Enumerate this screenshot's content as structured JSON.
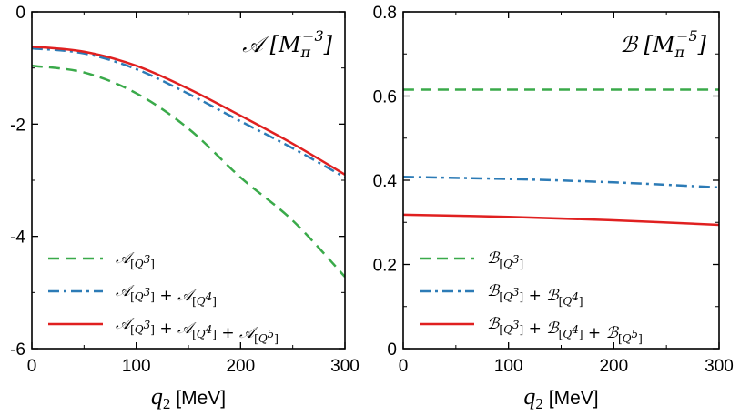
{
  "chart_data": [
    {
      "type": "line",
      "title": "𝒜 [Mπ⁻³]",
      "title_parts": {
        "symbol": "𝒜",
        "unit_base": "M",
        "unit_sub": "π",
        "unit_sup": "−3"
      },
      "xlabel": "q₂ [MeV]",
      "xlabel_parts": {
        "var": "q",
        "sub": "2",
        "unit": "[MeV]"
      },
      "ylabel": "",
      "xlim": [
        0,
        300
      ],
      "ylim": [
        -6,
        0
      ],
      "xticks": [
        0,
        100,
        200,
        300
      ],
      "yticks": [
        0,
        -2,
        -4,
        -6
      ],
      "ytick_labels": [
        "0",
        "-2",
        "-4",
        "-6"
      ],
      "legend_position": "bottom-left",
      "series": [
        {
          "name": "𝒜[Q³]",
          "legend_parts": [
            [
              "𝒜",
              "[Q3]"
            ]
          ],
          "style": "dashed",
          "color": "#3aaa4a",
          "x": [
            0,
            50,
            100,
            150,
            200,
            250,
            300
          ],
          "y": [
            -0.96,
            -1.08,
            -1.45,
            -2.08,
            -2.95,
            -3.72,
            -4.72
          ]
        },
        {
          "name": "𝒜[Q³] + 𝒜[Q⁴]",
          "legend_parts": [
            [
              "𝒜",
              "[Q3]"
            ],
            [
              "𝒜",
              "[Q4]"
            ]
          ],
          "style": "dashdot",
          "color": "#2c7bb6",
          "x": [
            0,
            50,
            100,
            150,
            200,
            250,
            300
          ],
          "y": [
            -0.65,
            -0.74,
            -1.02,
            -1.46,
            -1.95,
            -2.43,
            -2.95
          ]
        },
        {
          "name": "𝒜[Q³] + 𝒜[Q⁴] + 𝒜[Q⁵]",
          "legend_parts": [
            [
              "𝒜",
              "[Q3]"
            ],
            [
              "𝒜",
              "[Q4]"
            ],
            [
              "𝒜",
              "[Q5]"
            ]
          ],
          "style": "solid",
          "color": "#e02020",
          "x": [
            0,
            50,
            100,
            150,
            200,
            250,
            300
          ],
          "y": [
            -0.62,
            -0.71,
            -0.96,
            -1.37,
            -1.85,
            -2.35,
            -2.9
          ]
        }
      ]
    },
    {
      "type": "line",
      "title": "ℬ [Mπ⁻⁵]",
      "title_parts": {
        "symbol": "ℬ",
        "unit_base": "M",
        "unit_sub": "π",
        "unit_sup": "−5"
      },
      "xlabel": "q₂ [MeV]",
      "xlabel_parts": {
        "var": "q",
        "sub": "2",
        "unit": "[MeV]"
      },
      "ylabel": "",
      "xlim": [
        0,
        300
      ],
      "ylim": [
        0,
        0.8
      ],
      "xticks": [
        0,
        100,
        200,
        300
      ],
      "yticks": [
        0,
        0.2,
        0.4,
        0.6,
        0.8
      ],
      "ytick_labels": [
        "0",
        "0.2",
        "0.4",
        "0.6",
        "0.8"
      ],
      "legend_position": "bottom-left",
      "series": [
        {
          "name": "ℬ[Q³]",
          "legend_parts": [
            [
              "ℬ",
              "[Q3]"
            ]
          ],
          "style": "dashed",
          "color": "#3aaa4a",
          "x": [
            0,
            100,
            200,
            300
          ],
          "y": [
            0.615,
            0.615,
            0.615,
            0.615
          ]
        },
        {
          "name": "ℬ[Q³] + ℬ[Q⁴]",
          "legend_parts": [
            [
              "ℬ",
              "[Q3]"
            ],
            [
              "ℬ",
              "[Q4]"
            ]
          ],
          "style": "dashdot",
          "color": "#2c7bb6",
          "x": [
            0,
            100,
            200,
            300
          ],
          "y": [
            0.408,
            0.403,
            0.395,
            0.383
          ]
        },
        {
          "name": "ℬ[Q³] + ℬ[Q⁴] + ℬ[Q⁵]",
          "legend_parts": [
            [
              "ℬ",
              "[Q3]"
            ],
            [
              "ℬ",
              "[Q4]"
            ],
            [
              "ℬ",
              "[Q5]"
            ]
          ],
          "style": "solid",
          "color": "#e02020",
          "x": [
            0,
            100,
            200,
            300
          ],
          "y": [
            0.318,
            0.313,
            0.305,
            0.294
          ]
        }
      ]
    }
  ]
}
